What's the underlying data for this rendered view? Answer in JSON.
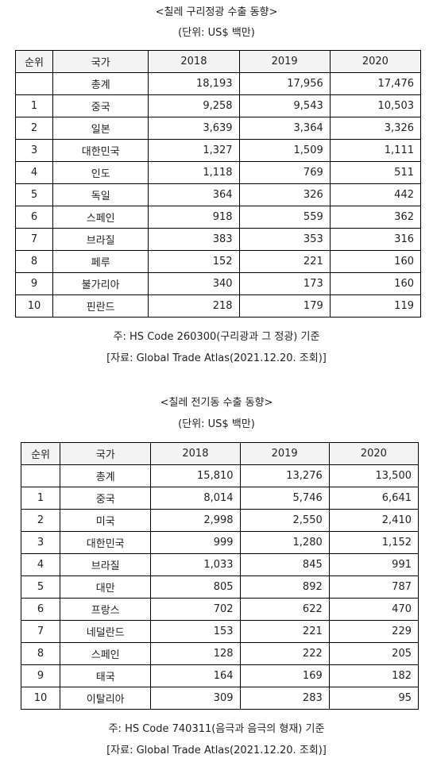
{
  "section1": {
    "title": "<칠레 구리정광 수출 동향>",
    "unit": "(단위: US$ 백만)",
    "headers": [
      "순위",
      "국가",
      "2018",
      "2019",
      "2020"
    ],
    "rows": [
      [
        "",
        "총계",
        "18,193",
        "17,956",
        "17,476"
      ],
      [
        "1",
        "중국",
        "9,258",
        "9,543",
        "10,503"
      ],
      [
        "2",
        "일본",
        "3,639",
        "3,364",
        "3,326"
      ],
      [
        "3",
        "대한민국",
        "1,327",
        "1,509",
        "1,111"
      ],
      [
        "4",
        "인도",
        "1,118",
        "769",
        "511"
      ],
      [
        "5",
        "독일",
        "364",
        "326",
        "442"
      ],
      [
        "6",
        "스페인",
        "918",
        "559",
        "362"
      ],
      [
        "7",
        "브라질",
        "383",
        "353",
        "316"
      ],
      [
        "8",
        "페루",
        "152",
        "221",
        "160"
      ],
      [
        "9",
        "불가리아",
        "340",
        "173",
        "160"
      ],
      [
        "10",
        "핀란드",
        "218",
        "179",
        "119"
      ]
    ],
    "note": "주: HS Code 260300(구리광과 그 정광) 기준",
    "source": "[자료: Global Trade Atlas(2021.12.20. 조회)]"
  },
  "section2": {
    "title": "<칠레 전기동 수출 동향>",
    "unit": "(단위: US$ 백만)",
    "headers": [
      "순위",
      "국가",
      "2018",
      "2019",
      "2020"
    ],
    "rows": [
      [
        "",
        "총계",
        "15,810",
        "13,276",
        "13,500"
      ],
      [
        "1",
        "중국",
        "8,014",
        "5,746",
        "6,641"
      ],
      [
        "2",
        "미국",
        "2,998",
        "2,550",
        "2,410"
      ],
      [
        "3",
        "대한민국",
        "999",
        "1,280",
        "1,152"
      ],
      [
        "4",
        "브라질",
        "1,033",
        "845",
        "991"
      ],
      [
        "5",
        "대만",
        "805",
        "892",
        "787"
      ],
      [
        "6",
        "프랑스",
        "702",
        "622",
        "470"
      ],
      [
        "7",
        "네덜란드",
        "153",
        "221",
        "229"
      ],
      [
        "8",
        "스페인",
        "128",
        "222",
        "205"
      ],
      [
        "9",
        "태국",
        "164",
        "169",
        "182"
      ],
      [
        "10",
        "이탈리아",
        "309",
        "283",
        "95"
      ]
    ],
    "note": "주: HS Code 740311(음극과 음극의 형재) 기준",
    "source": "[자료: Global Trade Atlas(2021.12.20. 조회)]"
  }
}
